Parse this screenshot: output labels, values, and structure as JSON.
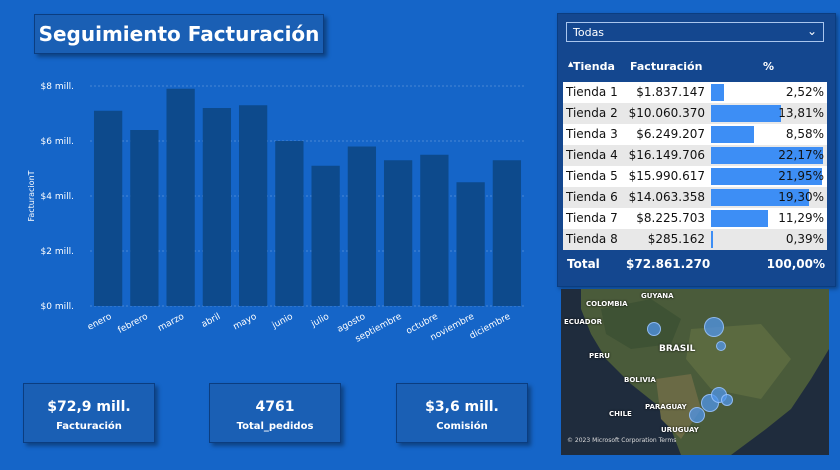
{
  "header": {
    "title": "Seguimiento Facturación"
  },
  "chart_data": {
    "type": "bar",
    "ylabel": "FacturacionT",
    "xlabel": "",
    "ylim": [
      0,
      8
    ],
    "yticks": [
      "$0 mill.",
      "$2 mill.",
      "$4 mill.",
      "$6 mill.",
      "$8 mill."
    ],
    "categories": [
      "enero",
      "febrero",
      "marzo",
      "abril",
      "mayo",
      "junio",
      "julio",
      "agosto",
      "septiembre",
      "octubre",
      "noviembre",
      "diciembre"
    ],
    "values": [
      7.1,
      6.4,
      7.9,
      7.2,
      7.3,
      6.0,
      5.1,
      5.8,
      5.3,
      5.5,
      4.5,
      5.3
    ],
    "grid": true,
    "bar_color": "#0d4a8c"
  },
  "kpis": [
    {
      "value": "$72,9 mill.",
      "label": "Facturación"
    },
    {
      "value": "4761",
      "label": "Total_pedidos"
    },
    {
      "value": "$3,6 mill.",
      "label": "Comisión"
    }
  ],
  "slicer": {
    "selected": "Todas"
  },
  "table": {
    "headers": {
      "tienda": "Tienda",
      "facturacion": "Facturación",
      "pct": "%"
    },
    "rows": [
      {
        "tienda": "Tienda 1",
        "facturacion": "$1.837.147",
        "pct": "2,52%",
        "share": 2.52
      },
      {
        "tienda": "Tienda 2",
        "facturacion": "$10.060.370",
        "pct": "13,81%",
        "share": 13.81
      },
      {
        "tienda": "Tienda 3",
        "facturacion": "$6.249.207",
        "pct": "8,58%",
        "share": 8.58
      },
      {
        "tienda": "Tienda 4",
        "facturacion": "$16.149.706",
        "pct": "22,17%",
        "share": 22.17
      },
      {
        "tienda": "Tienda 5",
        "facturacion": "$15.990.617",
        "pct": "21,95%",
        "share": 21.95
      },
      {
        "tienda": "Tienda 6",
        "facturacion": "$14.063.358",
        "pct": "19,30%",
        "share": 19.3
      },
      {
        "tienda": "Tienda 7",
        "facturacion": "$8.225.703",
        "pct": "11,29%",
        "share": 11.29
      },
      {
        "tienda": "Tienda 8",
        "facturacion": "$285.162",
        "pct": "0,39%",
        "share": 0.39
      }
    ],
    "total": {
      "label": "Total",
      "facturacion": "$72.861.270",
      "pct": "100,00%"
    },
    "bar_color": "#3d8ef5"
  },
  "map": {
    "labels": [
      "GUYANA",
      "COLOMBIA",
      "ECUADOR",
      "PERU",
      "BRASIL",
      "BOLIVIA",
      "PARAGUAY",
      "CHILE",
      "URUGUAY"
    ],
    "credit": "© 2023 Microsoft Corporation Terms"
  }
}
